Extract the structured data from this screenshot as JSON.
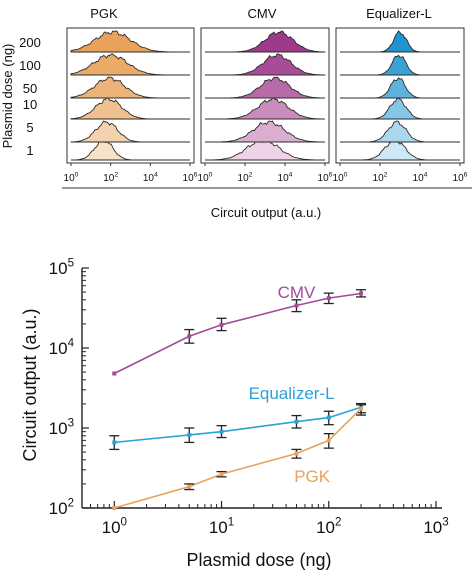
{
  "chart_data": [
    {
      "type": "area",
      "xlabel": "Circuit output (a.u.)",
      "ylabel": "Plasmid dose (ng)",
      "x_scale": "log",
      "xlim": [
        1,
        1000000
      ],
      "x_ticks": [
        {
          "base": "10",
          "exp": "0"
        },
        {
          "base": "10",
          "exp": "2"
        },
        {
          "base": "10",
          "exp": "4"
        },
        {
          "base": "10",
          "exp": "6"
        }
      ],
      "doses": [
        "200",
        "100",
        "50",
        "10",
        "5",
        "1"
      ],
      "panels": [
        {
          "name": "PGK",
          "colors": [
            "#e8a25c",
            "#eaaa68",
            "#edb479",
            "#f0c08e",
            "#f4d2ad",
            "#f8e2ca"
          ],
          "peaks_log10": [
            2.1,
            2.0,
            1.95,
            1.9,
            1.8,
            1.65
          ],
          "widths_log10": [
            0.9,
            0.85,
            0.75,
            0.65,
            0.55,
            0.45
          ]
        },
        {
          "name": "CMV",
          "colors": [
            "#9e3a8c",
            "#a84c97",
            "#b86aa9",
            "#c98cbc",
            "#d9aed0",
            "#ecd3e6"
          ],
          "peaks_log10": [
            3.7,
            3.6,
            3.5,
            3.4,
            3.2,
            2.9
          ],
          "widths_log10": [
            0.7,
            0.7,
            0.72,
            0.75,
            0.78,
            0.8
          ]
        },
        {
          "name": "Equalizer-L",
          "colors": [
            "#1f94cf",
            "#3aa2d6",
            "#5eb3de",
            "#86c6e6",
            "#aad6ee",
            "#cfe8f5"
          ],
          "peaks_log10": [
            3.0,
            2.95,
            2.9,
            2.9,
            2.85,
            2.75
          ],
          "widths_log10": [
            0.32,
            0.34,
            0.36,
            0.4,
            0.45,
            0.5
          ]
        }
      ]
    },
    {
      "type": "line",
      "xlabel": "Plasmid dose (ng)",
      "ylabel": "Circuit output (a.u.)",
      "x_scale": "log",
      "y_scale": "log",
      "xlim": [
        0.5,
        1000
      ],
      "ylim": [
        100,
        100000
      ],
      "x_ticks": [
        {
          "value": 1,
          "base": "10",
          "exp": "0"
        },
        {
          "value": 10,
          "base": "10",
          "exp": "1"
        },
        {
          "value": 100,
          "base": "10",
          "exp": "2"
        },
        {
          "value": 1000,
          "base": "10",
          "exp": "3"
        }
      ],
      "y_ticks": [
        {
          "value": 100,
          "base": "10",
          "exp": "2"
        },
        {
          "value": 1000,
          "base": "10",
          "exp": "3"
        },
        {
          "value": 10000,
          "base": "10",
          "exp": "4"
        },
        {
          "value": 100000,
          "base": "10",
          "exp": "5"
        }
      ],
      "x": [
        1,
        5,
        10,
        50,
        100,
        200
      ],
      "series": [
        {
          "name": "CMV",
          "color": "#a34a9a",
          "label_at": [
            50,
            42000
          ],
          "values": [
            4800,
            14000,
            19500,
            34000,
            42000,
            48000
          ],
          "err_low": [
            null,
            11500,
            16500,
            28500,
            36000,
            43500
          ],
          "err_high": [
            null,
            17000,
            23500,
            40000,
            48500,
            53500
          ]
        },
        {
          "name": "Equalizer-L",
          "color": "#2aa3d6",
          "label_at": [
            45,
            2300
          ],
          "values": [
            660,
            820,
            900,
            1200,
            1350,
            1820
          ],
          "err_low": [
            540,
            660,
            760,
            1000,
            1100,
            1550
          ],
          "err_high": [
            800,
            1000,
            1070,
            1430,
            1620,
            2020
          ]
        },
        {
          "name": "PGK",
          "color": "#e8a25c",
          "label_at": [
            70,
            210
          ],
          "values": [
            100,
            185,
            265,
            480,
            700,
            1750
          ],
          "err_low": [
            null,
            170,
            245,
            420,
            560,
            1450
          ],
          "err_high": [
            null,
            200,
            285,
            540,
            850,
            1950
          ]
        }
      ]
    }
  ]
}
